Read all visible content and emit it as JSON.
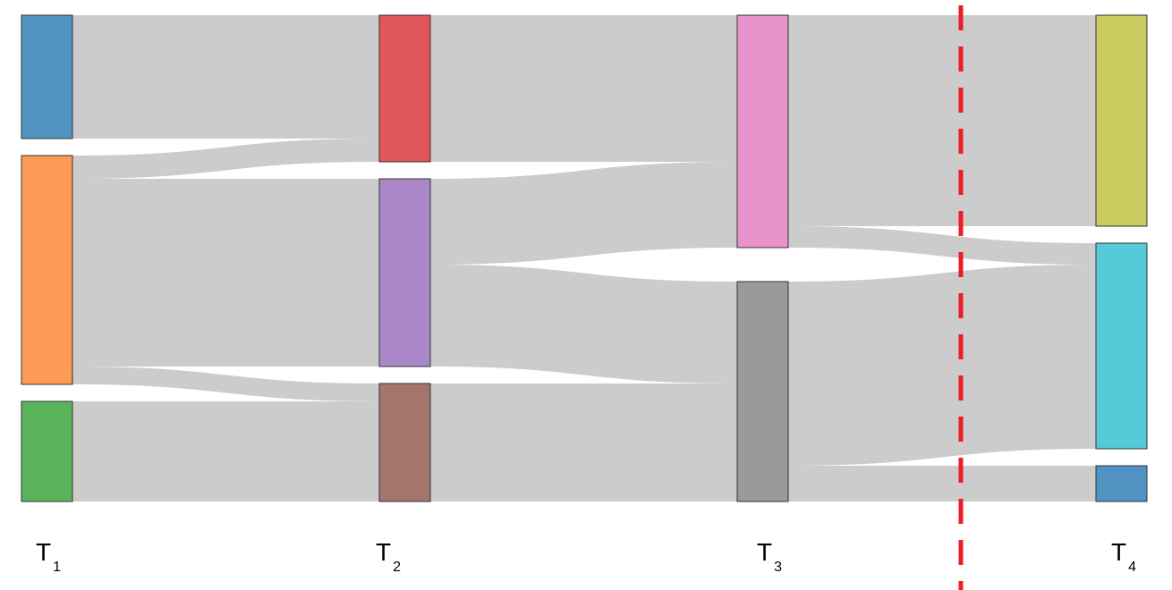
{
  "diagram": {
    "type": "sankey",
    "link_color": "#cccccc",
    "divider_color": "#ee1c25",
    "stages": [
      {
        "id": "T1",
        "main": "T",
        "sub": "1"
      },
      {
        "id": "T2",
        "main": "T",
        "sub": "2"
      },
      {
        "id": "T3",
        "main": "T",
        "sub": "3"
      },
      {
        "id": "T4",
        "main": "T",
        "sub": "4"
      }
    ],
    "nodes": [
      {
        "id": "t1_blue",
        "stage": 0,
        "value": 69,
        "color": "#5093c3"
      },
      {
        "id": "t1_orange",
        "stage": 0,
        "value": 128,
        "color": "#fd9a56"
      },
      {
        "id": "t1_green",
        "stage": 0,
        "value": 56,
        "color": "#5ab35a"
      },
      {
        "id": "t2_red",
        "stage": 1,
        "value": 82,
        "color": "#e05659"
      },
      {
        "id": "t2_purple",
        "stage": 1,
        "value": 105,
        "color": "#aa87c8"
      },
      {
        "id": "t2_brown",
        "stage": 1,
        "value": 66,
        "color": "#a3756d"
      },
      {
        "id": "t3_pink",
        "stage": 2,
        "value": 130,
        "color": "#e893cb"
      },
      {
        "id": "t3_gray",
        "stage": 2,
        "value": 123,
        "color": "#9a9a9a"
      },
      {
        "id": "t4_olive",
        "stage": 3,
        "value": 118,
        "color": "#cbca5e"
      },
      {
        "id": "t4_cyan",
        "stage": 3,
        "value": 115,
        "color": "#54cbd7"
      },
      {
        "id": "t4_blue",
        "stage": 3,
        "value": 20,
        "color": "#5093c3"
      }
    ],
    "links": [
      {
        "source": "t1_blue",
        "target": "t2_red",
        "value": 69
      },
      {
        "source": "t1_orange",
        "target": "t2_red",
        "value": 13
      },
      {
        "source": "t1_orange",
        "target": "t2_purple",
        "value": 105
      },
      {
        "source": "t1_orange",
        "target": "t2_brown",
        "value": 10
      },
      {
        "source": "t1_green",
        "target": "t2_brown",
        "value": 56
      },
      {
        "source": "t2_red",
        "target": "t3_pink",
        "value": 82
      },
      {
        "source": "t2_purple",
        "target": "t3_pink",
        "value": 48
      },
      {
        "source": "t2_purple",
        "target": "t3_gray",
        "value": 57
      },
      {
        "source": "t2_brown",
        "target": "t3_gray",
        "value": 66
      },
      {
        "source": "t3_pink",
        "target": "t4_olive",
        "value": 118
      },
      {
        "source": "t3_pink",
        "target": "t4_cyan",
        "value": 12
      },
      {
        "source": "t3_gray",
        "target": "t4_cyan",
        "value": 103
      },
      {
        "source": "t3_gray",
        "target": "t4_blue",
        "value": 20
      }
    ]
  }
}
